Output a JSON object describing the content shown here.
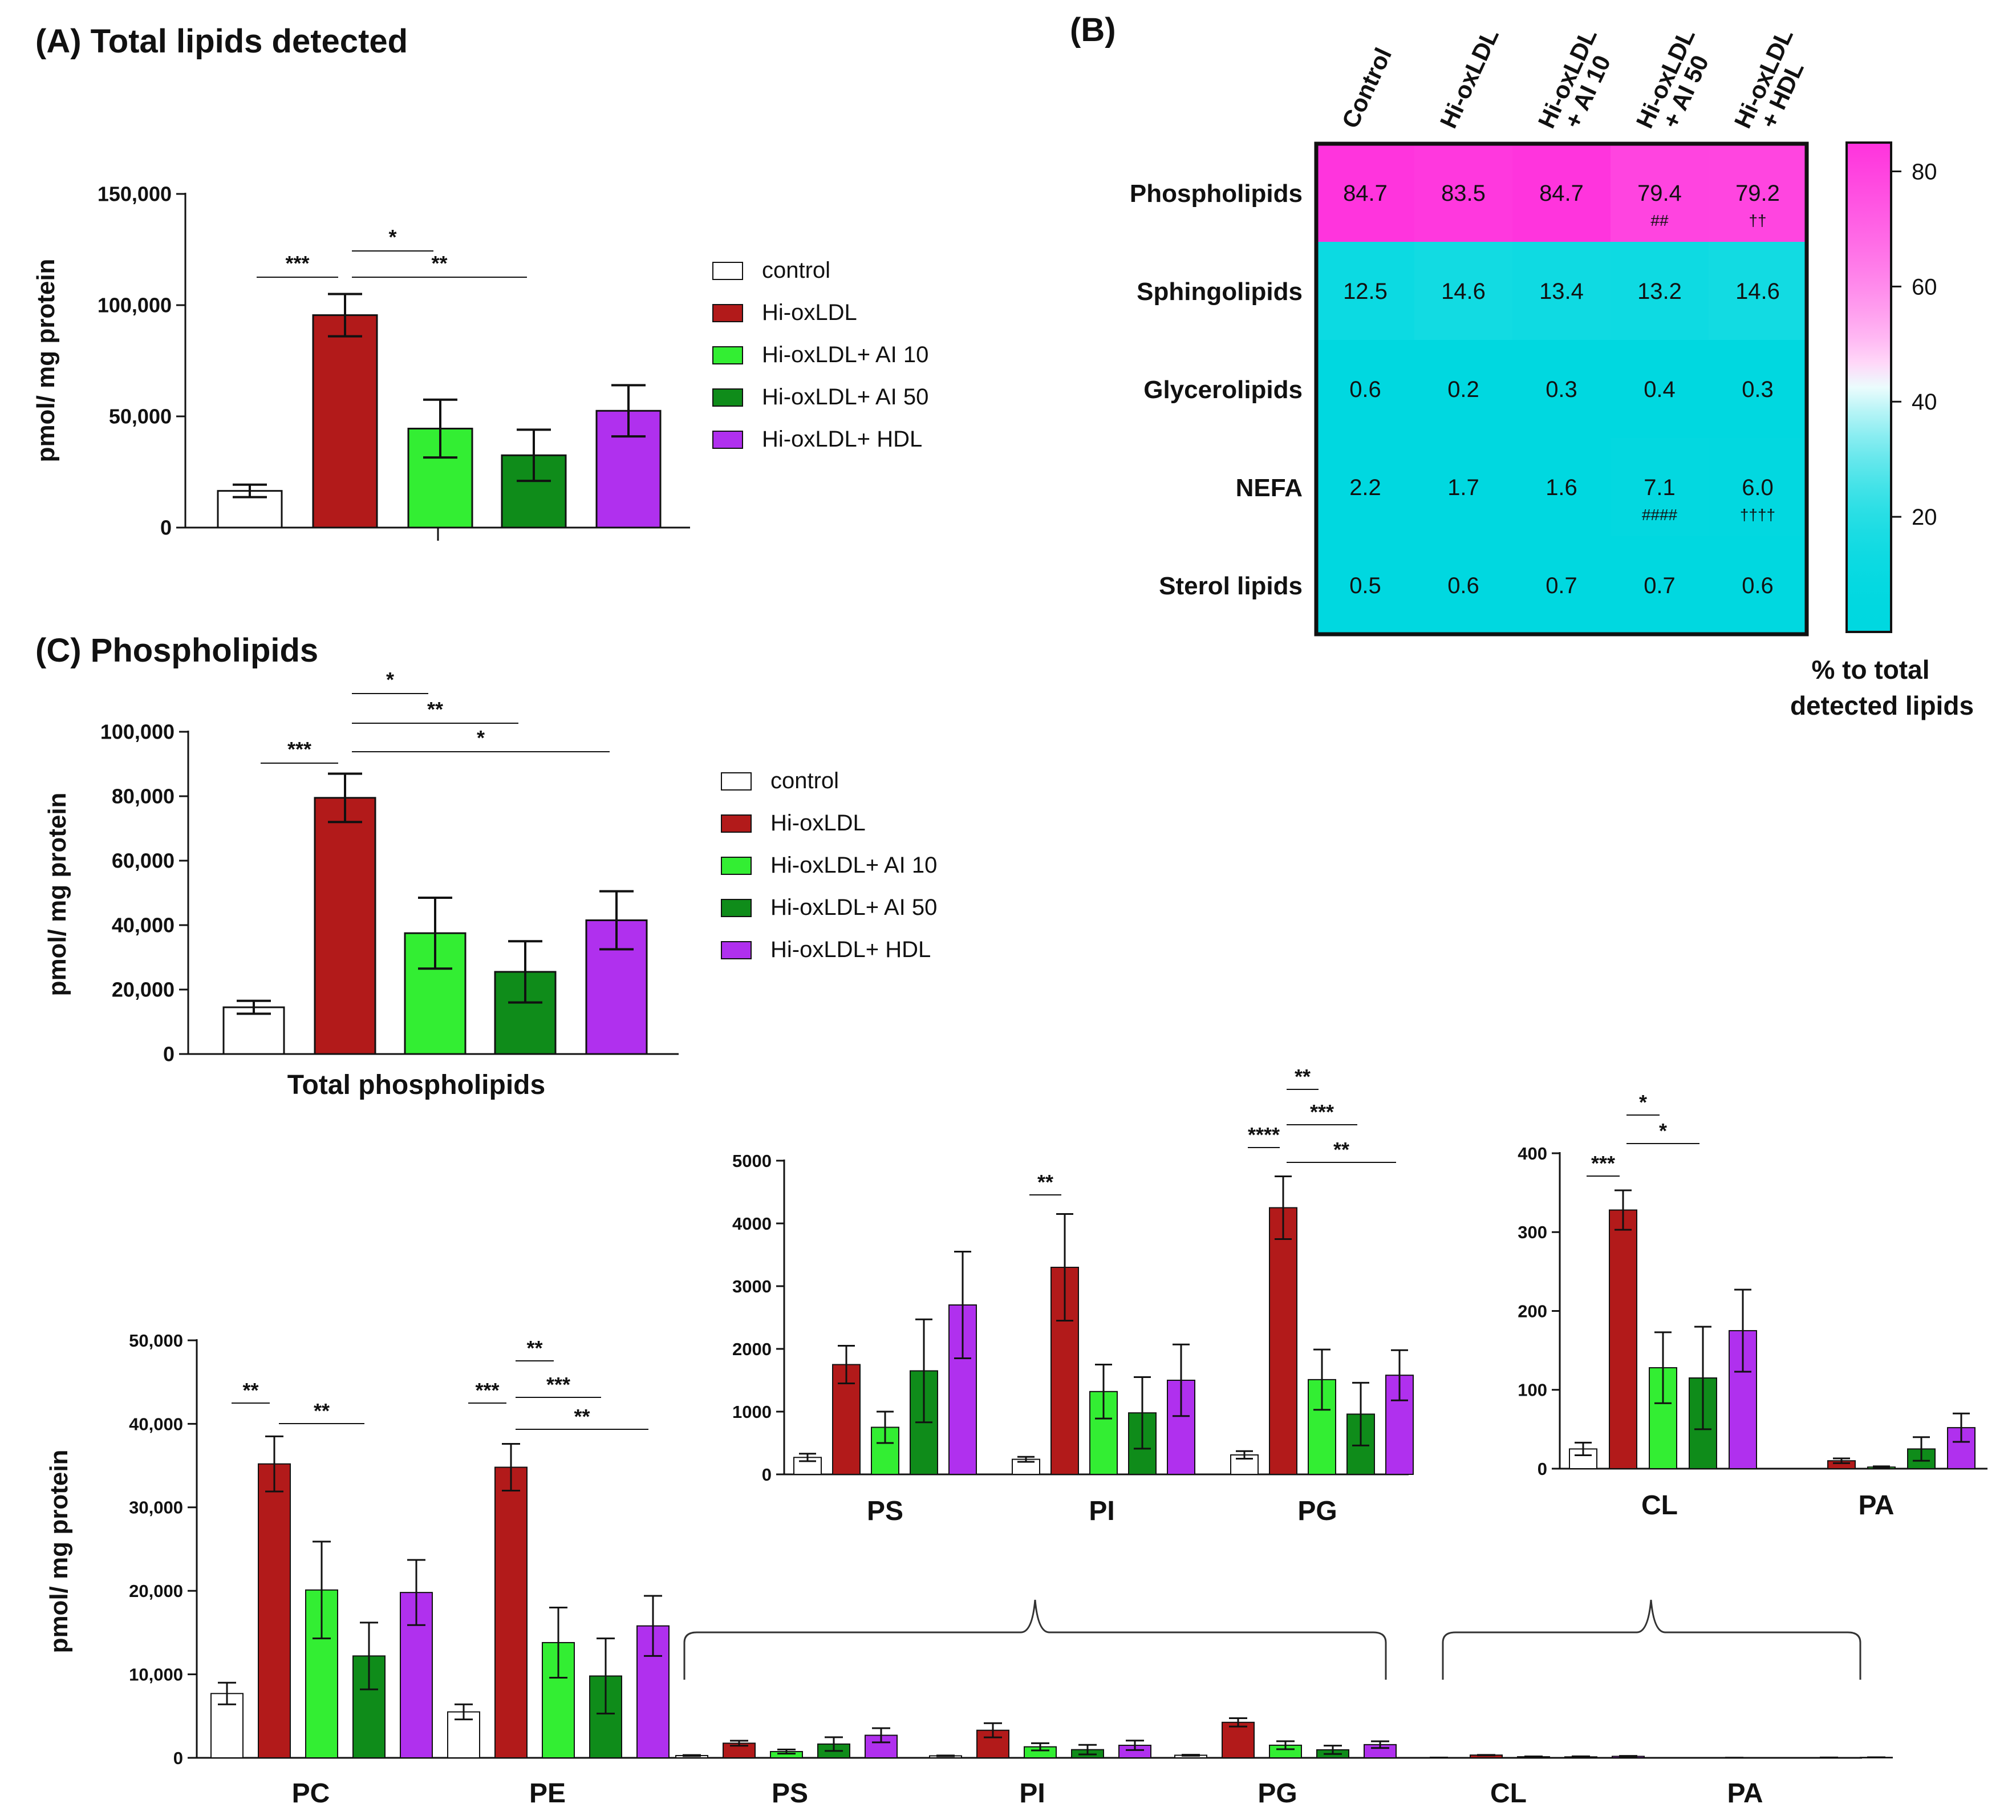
{
  "colors": {
    "control": "#ffffff",
    "hi_oxldl": "#b21a1a",
    "ai10": "#33ee33",
    "ai50": "#0f8c1a",
    "hdl": "#b030ee",
    "heat_high": "#ff33dd",
    "heat_mid": "#ffffff",
    "heat_low": "#00d8e0"
  },
  "legend": [
    "control",
    "Hi-oxLDL",
    "Hi-oxLDL+ AI 10",
    "Hi-oxLDL+ AI 50",
    "Hi-oxLDL+ HDL"
  ],
  "panelA": {
    "title": "(A) Total lipids detected"
  },
  "panelB": {
    "title": "(B)"
  },
  "panelC": {
    "title": "(C) Phospholipids"
  },
  "chart_data": [
    {
      "id": "A",
      "type": "bar",
      "title": "(A) Total lipids detected",
      "ylabel": "pmol/ mg protein",
      "ylim": [
        0,
        150000
      ],
      "yticks": [
        0,
        50000,
        100000,
        150000
      ],
      "ytick_labels": [
        "0",
        "50,000",
        "100,000",
        "150,000"
      ],
      "series_names": [
        "control",
        "Hi-oxLDL",
        "Hi-oxLDL+ AI 10",
        "Hi-oxLDL+ AI 50",
        "Hi-oxLDL+ HDL"
      ],
      "values": [
        16500,
        95500,
        44500,
        32500,
        52500
      ],
      "errors": [
        2800,
        9500,
        13000,
        11500,
        11500
      ],
      "significance": [
        {
          "from": 0,
          "to": 1,
          "label": "***"
        },
        {
          "from": 1,
          "to": 2,
          "label": "*"
        },
        {
          "from": 1,
          "to": 3,
          "label": "**"
        }
      ]
    },
    {
      "id": "B",
      "type": "heatmap",
      "columns": [
        "Control",
        "Hi-oxLDL",
        "Hi-oxLDL + AI 10",
        "Hi-oxLDL + AI 50",
        "Hi-oxLDL + HDL"
      ],
      "rows": [
        "Phospholipids",
        "Sphingolipids",
        "Glycerolipids",
        "NEFA",
        "Sterol lipids"
      ],
      "values": [
        [
          84.7,
          83.5,
          84.7,
          79.4,
          79.2
        ],
        [
          12.5,
          14.6,
          13.4,
          13.2,
          14.6
        ],
        [
          0.6,
          0.2,
          0.3,
          0.4,
          0.3
        ],
        [
          2.2,
          1.7,
          1.6,
          7.1,
          6.0
        ],
        [
          0.5,
          0.6,
          0.7,
          0.7,
          0.6
        ]
      ],
      "value_labels": [
        [
          "84.7",
          "83.5",
          "84.7",
          "79.4",
          "79.2"
        ],
        [
          "12.5",
          "14.6",
          "13.4",
          "13.2",
          "14.6"
        ],
        [
          "0.6",
          "0.2",
          "0.3",
          "0.4",
          "0.3"
        ],
        [
          "2.2",
          "1.7",
          "1.6",
          "7.1",
          "6.0"
        ],
        [
          "0.5",
          "0.6",
          "0.7",
          "0.7",
          "0.6"
        ]
      ],
      "annotations": [
        {
          "row": 0,
          "col": 3,
          "label": "##"
        },
        {
          "row": 0,
          "col": 4,
          "label": "††"
        },
        {
          "row": 3,
          "col": 3,
          "label": "####"
        },
        {
          "row": 3,
          "col": 4,
          "label": "††††"
        }
      ],
      "colorbar": {
        "range": [
          0,
          85
        ],
        "ticks": [
          20,
          40,
          60,
          80
        ],
        "label": [
          "% to total",
          "detected lipids"
        ]
      }
    },
    {
      "id": "C-total",
      "type": "bar",
      "xlabel": "Total phospholipids",
      "ylabel": "pmol/ mg protein",
      "ylim": [
        0,
        100000
      ],
      "yticks": [
        0,
        20000,
        40000,
        60000,
        80000,
        100000
      ],
      "ytick_labels": [
        "0",
        "20,000",
        "40,000",
        "60,000",
        "80,000",
        "100,000"
      ],
      "series_names": [
        "control",
        "Hi-oxLDL",
        "Hi-oxLDL+ AI 10",
        "Hi-oxLDL+ AI 50",
        "Hi-oxLDL+ HDL"
      ],
      "values": [
        14500,
        79500,
        37500,
        25500,
        41500
      ],
      "errors": [
        2000,
        7500,
        11000,
        9500,
        9000
      ],
      "significance": [
        {
          "from": 0,
          "to": 1,
          "label": "***"
        },
        {
          "from": 1,
          "to": 2,
          "label": "*"
        },
        {
          "from": 1,
          "to": 3,
          "label": "**"
        },
        {
          "from": 1,
          "to": 4,
          "label": "*"
        }
      ]
    },
    {
      "id": "C-classes",
      "type": "bar",
      "ylabel": "pmol/ mg protein",
      "ylim": [
        0,
        50000
      ],
      "yticks": [
        0,
        10000,
        20000,
        30000,
        40000,
        50000
      ],
      "ytick_labels": [
        "0",
        "10,000",
        "20,000",
        "30,000",
        "40,000",
        "50,000"
      ],
      "categories": [
        "PC",
        "PE",
        "PS",
        "PI",
        "PG",
        "CL",
        "PA"
      ],
      "series": [
        {
          "name": "control",
          "values": [
            7700,
            5500,
            270,
            240,
            310,
            25,
            0
          ],
          "errors": [
            1300,
            900,
            60,
            40,
            60,
            8,
            0
          ]
        },
        {
          "name": "Hi-oxLDL",
          "values": [
            35200,
            34800,
            1750,
            3300,
            4250,
            328,
            10
          ],
          "errors": [
            3300,
            2800,
            300,
            850,
            500,
            25,
            3
          ]
        },
        {
          "name": "Hi-oxLDL+ AI 10",
          "values": [
            20100,
            13800,
            750,
            1320,
            1510,
            128,
            2
          ],
          "errors": [
            5800,
            4200,
            250,
            430,
            480,
            45,
            1
          ]
        },
        {
          "name": "Hi-oxLDL+ AI 50",
          "values": [
            12200,
            9800,
            1650,
            980,
            960,
            115,
            25
          ],
          "errors": [
            4000,
            4500,
            820,
            570,
            500,
            65,
            15
          ]
        },
        {
          "name": "Hi-oxLDL+ HDL",
          "values": [
            19800,
            15800,
            2700,
            1500,
            1580,
            175,
            52
          ],
          "errors": [
            3900,
            3600,
            850,
            570,
            400,
            52,
            18
          ]
        }
      ],
      "significance": [
        {
          "category": "PC",
          "from": 0,
          "to": 1,
          "label": "**"
        },
        {
          "category": "PC",
          "from": 1,
          "to": 3,
          "label": "**"
        },
        {
          "category": "PE",
          "from": 0,
          "to": 1,
          "label": "***"
        },
        {
          "category": "PE",
          "from": 1,
          "to": 2,
          "label": "**"
        },
        {
          "category": "PE",
          "from": 1,
          "to": 3,
          "label": "***"
        },
        {
          "category": "PE",
          "from": 1,
          "to": 4,
          "label": "**"
        }
      ]
    },
    {
      "id": "C-inset1",
      "type": "bar",
      "ylim": [
        0,
        5000
      ],
      "yticks": [
        0,
        1000,
        2000,
        3000,
        4000,
        5000
      ],
      "ytick_labels": [
        "0",
        "1000",
        "2000",
        "3000",
        "4000",
        "5000"
      ],
      "categories": [
        "PS",
        "PI",
        "PG"
      ],
      "series": [
        {
          "name": "control",
          "values": [
            270,
            240,
            310
          ],
          "errors": [
            60,
            40,
            60
          ]
        },
        {
          "name": "Hi-oxLDL",
          "values": [
            1750,
            3300,
            4250
          ],
          "errors": [
            300,
            850,
            500
          ]
        },
        {
          "name": "Hi-oxLDL+ AI 10",
          "values": [
            750,
            1320,
            1510
          ],
          "errors": [
            250,
            430,
            480
          ]
        },
        {
          "name": "Hi-oxLDL+ AI 50",
          "values": [
            1650,
            980,
            960
          ],
          "errors": [
            820,
            570,
            500
          ]
        },
        {
          "name": "Hi-oxLDL+ HDL",
          "values": [
            2700,
            1500,
            1580
          ],
          "errors": [
            850,
            570,
            400
          ]
        }
      ],
      "significance": [
        {
          "category": "PI",
          "from": 0,
          "to": 1,
          "label": "**"
        },
        {
          "category": "PG",
          "from": 0,
          "to": 1,
          "label": "****"
        },
        {
          "category": "PG",
          "from": 1,
          "to": 2,
          "label": "**"
        },
        {
          "category": "PG",
          "from": 1,
          "to": 3,
          "label": "***"
        },
        {
          "category": "PG",
          "from": 1,
          "to": 4,
          "label": "**"
        }
      ]
    },
    {
      "id": "C-inset2",
      "type": "bar",
      "ylim": [
        0,
        400
      ],
      "yticks": [
        0,
        100,
        200,
        300,
        400
      ],
      "ytick_labels": [
        "0",
        "100",
        "200",
        "300",
        "400"
      ],
      "categories": [
        "CL",
        "PA"
      ],
      "series": [
        {
          "name": "control",
          "values": [
            25,
            0
          ],
          "errors": [
            8,
            0
          ]
        },
        {
          "name": "Hi-oxLDL",
          "values": [
            328,
            10
          ],
          "errors": [
            25,
            3
          ]
        },
        {
          "name": "Hi-oxLDL+ AI 10",
          "values": [
            128,
            2
          ],
          "errors": [
            45,
            1
          ]
        },
        {
          "name": "Hi-oxLDL+ AI 50",
          "values": [
            115,
            25
          ],
          "errors": [
            65,
            15
          ]
        },
        {
          "name": "Hi-oxLDL+ HDL",
          "values": [
            175,
            52
          ],
          "errors": [
            52,
            18
          ]
        }
      ],
      "significance": [
        {
          "category": "CL",
          "from": 0,
          "to": 1,
          "label": "***"
        },
        {
          "category": "CL",
          "from": 1,
          "to": 2,
          "label": "*"
        },
        {
          "category": "CL",
          "from": 1,
          "to": 3,
          "label": "*"
        }
      ]
    }
  ]
}
